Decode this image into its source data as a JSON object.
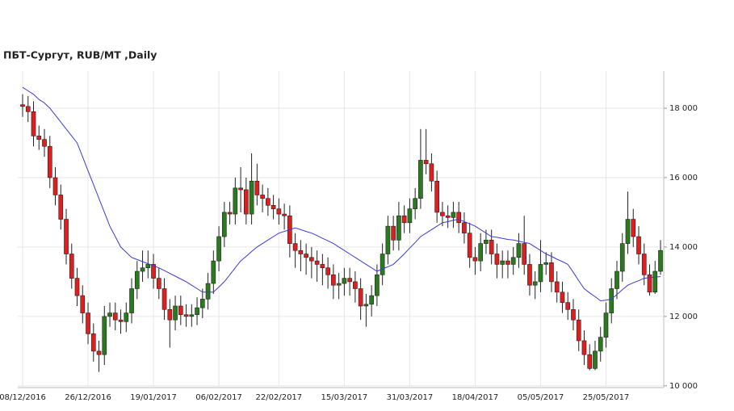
{
  "chart_data": {
    "type": "candlestick",
    "title": "ПБТ-Сургут,  RUB/MT ,Daily",
    "categories": [
      "08/12/2016",
      null,
      null,
      null,
      null,
      null,
      null,
      null,
      null,
      null,
      null,
      null,
      "26/12/2016",
      null,
      null,
      null,
      null,
      null,
      null,
      null,
      null,
      null,
      null,
      null,
      "19/01/2017",
      null,
      null,
      null,
      null,
      null,
      null,
      null,
      null,
      null,
      null,
      null,
      "06/02/2017",
      null,
      null,
      null,
      null,
      null,
      null,
      null,
      null,
      null,
      null,
      "22/02/2017",
      null,
      null,
      null,
      null,
      null,
      null,
      null,
      null,
      null,
      null,
      null,
      "15/03/2017",
      null,
      null,
      null,
      null,
      null,
      null,
      null,
      null,
      null,
      null,
      null,
      "31/03/2017",
      null,
      null,
      null,
      null,
      null,
      null,
      null,
      null,
      null,
      null,
      null,
      "18/04/2017",
      null,
      null,
      null,
      null,
      null,
      null,
      null,
      null,
      null,
      null,
      null,
      "05/05/2017",
      null,
      null,
      null,
      null,
      null,
      null,
      null,
      null,
      null,
      null,
      null,
      "25/05/2017",
      null,
      null,
      null,
      null,
      null,
      null,
      null,
      null,
      null,
      null
    ],
    "open": [
      18100,
      18050,
      17900,
      17200,
      17100,
      16900,
      16000,
      15500,
      14800,
      13800,
      13100,
      12600,
      12100,
      11500,
      11000,
      10900,
      12000,
      12100,
      11900,
      11850,
      12100,
      12800,
      13300,
      13400,
      13500,
      13100,
      12800,
      12200,
      11900,
      12300,
      12050,
      12000,
      12050,
      12250,
      12500,
      12950,
      13600,
      14300,
      15000,
      14950,
      15700,
      15650,
      14950,
      15900,
      15500,
      15400,
      15200,
      15100,
      14950,
      14900,
      14100,
      13900,
      13800,
      13700,
      13600,
      13500,
      13400,
      13200,
      12900,
      12950,
      13100,
      13000,
      12800,
      12300,
      12350,
      12600,
      13200,
      13800,
      14600,
      14200,
      14900,
      14700,
      15100,
      15400,
      16500,
      16400,
      15900,
      15000,
      14900,
      14850,
      15000,
      14700,
      14400,
      13700,
      13600,
      14100,
      14200,
      13800,
      13500,
      13600,
      13500,
      13700,
      14100,
      13500,
      12900,
      13000,
      13500,
      13550,
      13000,
      12700,
      12400,
      12200,
      11900,
      11300,
      10900,
      10500,
      11000,
      11400,
      12100,
      12800,
      13300,
      14100,
      14800,
      14300,
      13800,
      13200,
      12700,
      13300
    ],
    "high": [
      18400,
      18350,
      18200,
      17500,
      17400,
      17200,
      16300,
      15800,
      15100,
      14100,
      13400,
      12900,
      12400,
      11800,
      11300,
      12300,
      12400,
      12400,
      12200,
      12400,
      13100,
      13600,
      13900,
      13900,
      13800,
      13400,
      13100,
      12500,
      12600,
      12600,
      12350,
      12350,
      12550,
      12800,
      13250,
      13900,
      14600,
      15300,
      15300,
      16000,
      16300,
      16000,
      16700,
      16400,
      15800,
      15700,
      15500,
      15400,
      15250,
      15200,
      14400,
      14200,
      14100,
      14000,
      13900,
      13800,
      13700,
      13500,
      13250,
      13400,
      13400,
      13300,
      13100,
      12650,
      12900,
      13500,
      14100,
      14900,
      14900,
      15300,
      15200,
      15400,
      15700,
      17400,
      17400,
      16700,
      16200,
      15300,
      15200,
      15300,
      15300,
      15000,
      14700,
      14000,
      14400,
      14500,
      14500,
      14100,
      13900,
      13900,
      14000,
      14400,
      14900,
      13800,
      13300,
      14200,
      13850,
      13850,
      13300,
      13000,
      12700,
      12500,
      12200,
      11600,
      11200,
      11300,
      11700,
      12400,
      13100,
      13600,
      14400,
      15600,
      15100,
      14600,
      14100,
      13500,
      13600,
      14200
    ],
    "low": [
      17750,
      17600,
      16900,
      16800,
      16600,
      15700,
      15200,
      14500,
      13500,
      12800,
      12300,
      11800,
      11200,
      10700,
      10400,
      10600,
      11700,
      11600,
      11500,
      11550,
      11800,
      12500,
      13000,
      13100,
      12800,
      12500,
      11900,
      11100,
      11600,
      11750,
      11700,
      11700,
      11750,
      11950,
      12200,
      12650,
      13300,
      14000,
      14650,
      14650,
      15000,
      14650,
      14650,
      15200,
      15000,
      14900,
      14800,
      14650,
      14500,
      13700,
      13400,
      13300,
      13200,
      13100,
      13000,
      12900,
      12800,
      12500,
      12500,
      12600,
      12600,
      12400,
      11900,
      11700,
      12000,
      12300,
      12900,
      13500,
      13900,
      13900,
      14400,
      14400,
      14800,
      15100,
      16100,
      15600,
      14700,
      14600,
      14550,
      14550,
      14400,
      14100,
      13400,
      13200,
      13300,
      13800,
      13500,
      13100,
      13100,
      13100,
      13200,
      13400,
      13200,
      12600,
      12500,
      12700,
      13200,
      12700,
      12400,
      12100,
      11900,
      11600,
      11000,
      10600,
      10450,
      10450,
      10700,
      11100,
      11800,
      12500,
      13000,
      13800,
      14000,
      13500,
      12900,
      12600,
      12650,
      13200
    ],
    "close": [
      18050,
      17900,
      17200,
      17100,
      16900,
      16000,
      15500,
      14800,
      13800,
      13100,
      12600,
      12100,
      11500,
      11000,
      10900,
      12000,
      12100,
      11900,
      11850,
      12100,
      12800,
      13300,
      13400,
      13500,
      13100,
      12800,
      12200,
      11900,
      12300,
      12050,
      12000,
      12050,
      12250,
      12500,
      12950,
      13600,
      14300,
      15000,
      14950,
      15700,
      15650,
      14950,
      15900,
      15500,
      15400,
      15200,
      15100,
      14950,
      14900,
      14100,
      13900,
      13800,
      13700,
      13600,
      13500,
      13400,
      13200,
      12900,
      12950,
      13100,
      13000,
      12800,
      12300,
      12350,
      12600,
      13200,
      13800,
      14600,
      14200,
      14900,
      14700,
      15100,
      15400,
      16500,
      16400,
      15900,
      15000,
      14900,
      14850,
      15000,
      14700,
      14400,
      13700,
      13600,
      14100,
      14200,
      13800,
      13500,
      13600,
      13500,
      13700,
      14100,
      13500,
      12900,
      13000,
      13500,
      13550,
      13000,
      12700,
      12400,
      12200,
      11900,
      11300,
      10900,
      10500,
      11000,
      11400,
      12100,
      12800,
      13300,
      14100,
      14800,
      14300,
      13800,
      13200,
      12700,
      13300,
      13900
    ],
    "up_color": "#2a7a1e",
    "down_color": "#e01e1e",
    "moving_average": {
      "color": "#3b3bd6",
      "values": [
        18600,
        18500,
        18400,
        18250,
        18150,
        18000,
        17800,
        17600,
        17400,
        17200,
        17000,
        16600,
        16200,
        15800,
        15400,
        15000,
        14600,
        14300,
        14000,
        13850,
        13700,
        13640,
        13580,
        13520,
        13460,
        13400,
        13320,
        13240,
        13160,
        13080,
        13000,
        12900,
        12800,
        12700,
        12700,
        12700,
        12850,
        13000,
        13200,
        13400,
        13600,
        13730,
        13870,
        14000,
        14100,
        14200,
        14300,
        14400,
        14450,
        14500,
        14550,
        14500,
        14450,
        14400,
        14330,
        14250,
        14180,
        14100,
        14000,
        13900,
        13800,
        13700,
        13600,
        13500,
        13400,
        13300,
        13370,
        13430,
        13500,
        13650,
        13800,
        13970,
        14130,
        14300,
        14400,
        14500,
        14600,
        14700,
        14730,
        14770,
        14800,
        14730,
        14670,
        14600,
        14500,
        14400,
        14300,
        14280,
        14250,
        14220,
        14200,
        14170,
        14130,
        14100,
        14000,
        13900,
        13800,
        13730,
        13650,
        13580,
        13500,
        13270,
        13030,
        12800,
        12680,
        12570,
        12450,
        12470,
        12500,
        12630,
        12770,
        12900,
        12970,
        13030,
        13100,
        13120,
        13130,
        13150
      ]
    },
    "ylim": [
      9950,
      19070
    ],
    "yticks": [
      {
        "value": 10000,
        "label": "10 000"
      },
      {
        "value": 12000,
        "label": "12 000"
      },
      {
        "value": 14000,
        "label": "14 000"
      },
      {
        "value": 16000,
        "label": "16 000"
      },
      {
        "value": 18000,
        "label": "18 000"
      }
    ],
    "grid": true
  }
}
